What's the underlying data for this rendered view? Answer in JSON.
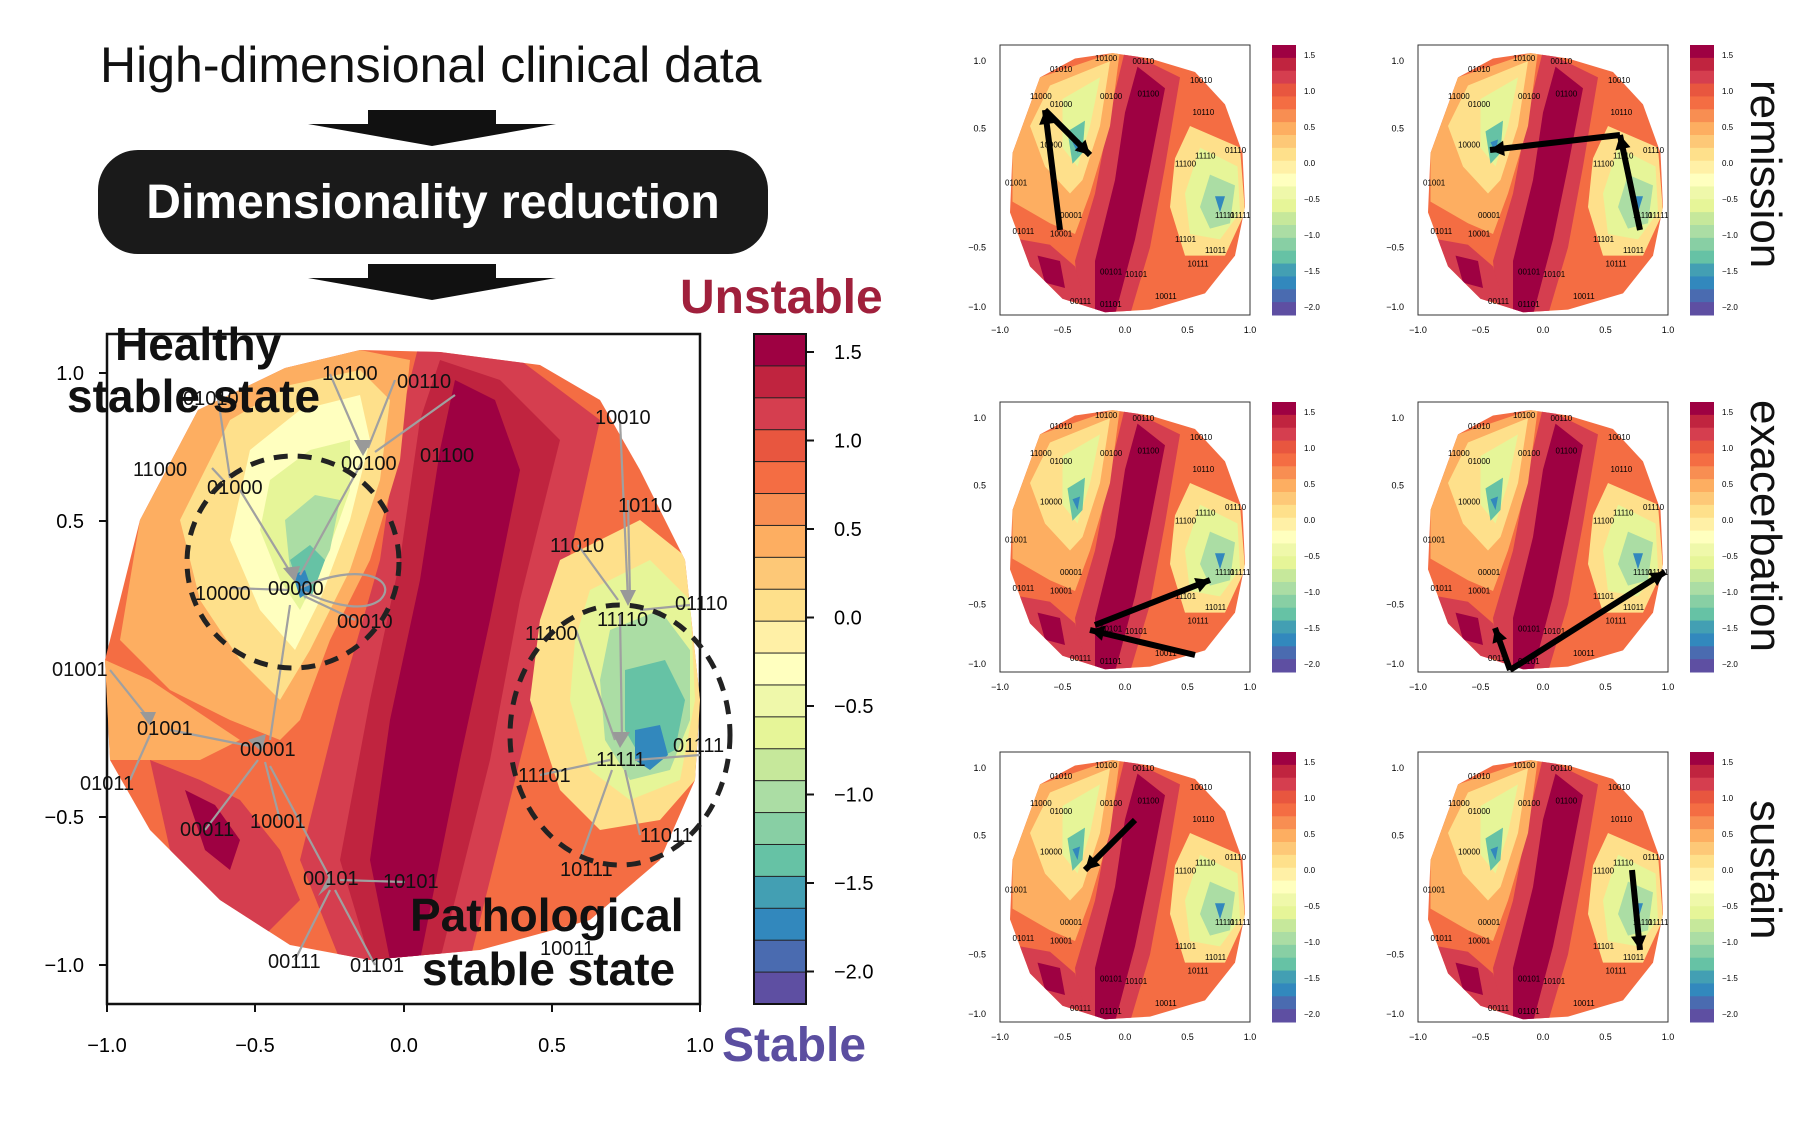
{
  "header": {
    "headline": "High-dimensional clinical data",
    "process_label": "Dimensionality reduction"
  },
  "main_plot": {
    "annotations": {
      "healthy": "Healthy\nstable state",
      "pathological": "Pathological\nstable state",
      "unstable": "Unstable",
      "stable": "Stable"
    },
    "x_ticks": [
      "−1.0",
      "−0.5",
      "0.0",
      "0.5",
      "1.0"
    ],
    "y_ticks": [
      "1.0",
      "0.5",
      "−0.5",
      "−1.0"
    ],
    "colorbar_ticks": [
      "1.5",
      "1.0",
      "0.5",
      "0.0",
      "−0.5",
      "−1.0",
      "−1.5",
      "−2.0"
    ],
    "node_labels": [
      "10100",
      "00110",
      "01010",
      "11000",
      "01000",
      "00100",
      "01100",
      "10010",
      "10110",
      "11010",
      "00000",
      "10000",
      "00010",
      "01110",
      "11110",
      "11100",
      "01001",
      "01001",
      "00001",
      "01011",
      "11111",
      "01111",
      "11101",
      "00011",
      "10001",
      "11011",
      "00101",
      "10101",
      "10111",
      "00111",
      "01101",
      "10011"
    ],
    "colors": {
      "unstable": "#a0203c",
      "stable": "#5b4ea0",
      "colorscale": [
        "#9e0142",
        "#c0243f",
        "#d53e4f",
        "#e8563f",
        "#f46d43",
        "#f88e52",
        "#fdae61",
        "#fdc877",
        "#fee08b",
        "#fff0a6",
        "#ffffbf",
        "#eff8aa",
        "#e6f598",
        "#c6e89b",
        "#abdda4",
        "#88cfa4",
        "#66c2a5",
        "#439fb3",
        "#3288bd",
        "#4a6bb0",
        "#5e4fa2"
      ]
    }
  },
  "small_plots": {
    "row_labels": [
      "remission",
      "exacerbation",
      "sustain"
    ],
    "x_ticks": [
      "−1.0",
      "−0.5",
      "0.0",
      "0.5",
      "1.0"
    ],
    "y_ticks": [
      "1.0",
      "0.5",
      "−0.5",
      "−1.0"
    ],
    "colorbar_ticks": [
      "1.5",
      "1.0",
      "0.5",
      "0.0",
      "−0.5",
      "−1.0",
      "−1.5",
      "−2.0"
    ],
    "node_labels": [
      "10100",
      "00110",
      "01010",
      "11000",
      "01000",
      "00100",
      "01100",
      "10010",
      "10110",
      "10000",
      "01110",
      "11100",
      "11110",
      "01001",
      "00001",
      "01011",
      "10001",
      "11101",
      "11111",
      "01111",
      "11011",
      "00101",
      "10101",
      "10111",
      "00111",
      "01101",
      "10011"
    ]
  }
}
